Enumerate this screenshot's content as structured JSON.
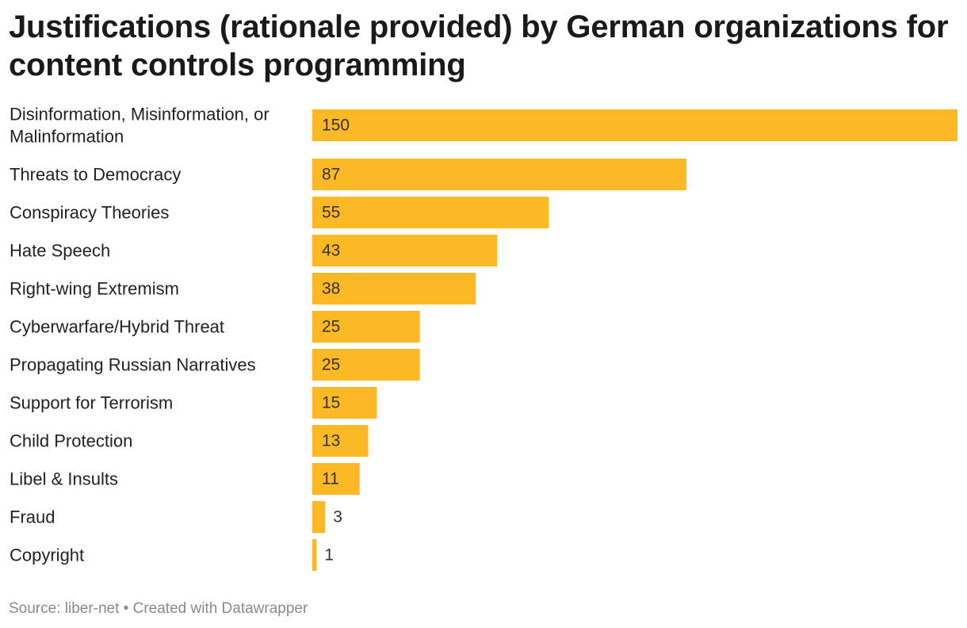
{
  "chart_data": {
    "type": "bar",
    "orientation": "horizontal",
    "title": "Justifications (rationale provided) by German organizations for content controls programming",
    "categories": [
      [
        "Disinformation, Misinformation, or",
        "Malinformation"
      ],
      [
        "Threats to Democracy"
      ],
      [
        "Conspiracy Theories"
      ],
      [
        "Hate Speech"
      ],
      [
        "Right-wing Extremism"
      ],
      [
        "Cyberwarfare/Hybrid Threat"
      ],
      [
        "Propagating Russian Narratives"
      ],
      [
        "Support for Terrorism"
      ],
      [
        "Child Protection"
      ],
      [
        "Libel & Insults"
      ],
      [
        "Fraud"
      ],
      [
        "Copyright"
      ]
    ],
    "values": [
      150,
      87,
      55,
      43,
      38,
      25,
      25,
      15,
      13,
      11,
      3,
      1
    ],
    "xlim": [
      0,
      150
    ],
    "bar_color": "#fdb924",
    "grid": false,
    "legend": "none",
    "source": "Source: liber-net • Created with Datawrapper"
  }
}
